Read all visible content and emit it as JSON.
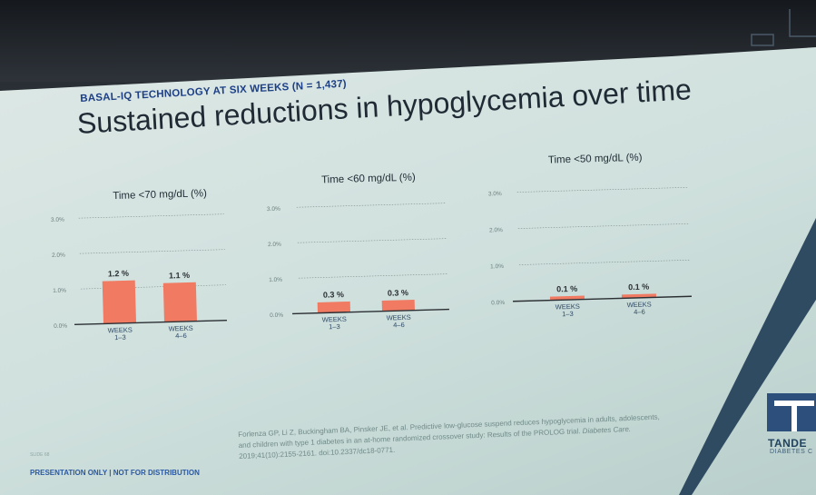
{
  "header": {
    "kicker": "BASAL-IQ TECHNOLOGY AT SIX WEEKS (N = 1,437)",
    "title": "Sustained reductions in hypoglycemia over time"
  },
  "colors": {
    "bar": "#f07a62",
    "baseline": "#2b2f33",
    "grid": "#7d8e8c",
    "title_text": "#1f2a34",
    "accent_blue": "#1d3f86"
  },
  "chart_data": [
    {
      "type": "bar",
      "title": "Time <70 mg/dL (%)",
      "categories": [
        "WEEKS 1–3",
        "WEEKS 4–6"
      ],
      "values": [
        1.2,
        1.1
      ],
      "data_labels": [
        "1.2 %",
        "1.1 %"
      ],
      "ylim": [
        0,
        3.0
      ],
      "yticks": [
        "0.0%",
        "1.0%",
        "2.0%",
        "3.0%"
      ],
      "grid": true
    },
    {
      "type": "bar",
      "title": "Time <60 mg/dL (%)",
      "categories": [
        "WEEKS 1–3",
        "WEEKS 4–6"
      ],
      "values": [
        0.3,
        0.3
      ],
      "data_labels": [
        "0.3 %",
        "0.3 %"
      ],
      "ylim": [
        0,
        3.0
      ],
      "yticks": [
        "0.0%",
        "1.0%",
        "2.0%",
        "3.0%"
      ],
      "grid": true
    },
    {
      "type": "bar",
      "title": "Time <50 mg/dL (%)",
      "categories": [
        "WEEKS 1–3",
        "WEEKS 4–6"
      ],
      "values": [
        0.1,
        0.1
      ],
      "data_labels": [
        "0.1 %",
        "0.1 %"
      ],
      "ylim": [
        0,
        3.0
      ],
      "yticks": [
        "0.0%",
        "1.0%",
        "2.0%",
        "3.0%"
      ],
      "grid": true
    }
  ],
  "footer": {
    "slide_number": "SLIDE 68",
    "notice": "PRESENTATION ONLY  |  NOT FOR DISTRIBUTION",
    "citation_plain": "Forlenza GP, Li Z, Buckingham BA, Pinsker JE, et al. Predictive low-glucose suspend reduces hypoglycemia in adults, adolescents, and children with type 1 diabetes in an at-home randomized crossover study: Results of the PROLOG trial. ",
    "citation_journal": "Diabetes Care.",
    "citation_tail": " 2019;41(10):2155-2161. doi:10.2337/dc18-0771."
  },
  "logo": {
    "name": "TANDE",
    "subtitle": "DIABETES C"
  }
}
